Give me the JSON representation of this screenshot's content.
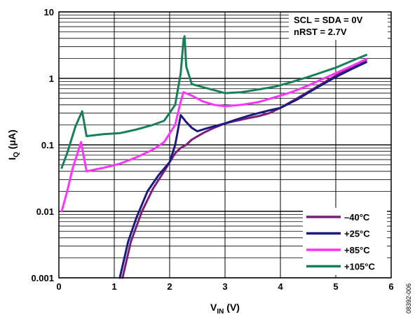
{
  "chart_data": {
    "type": "line",
    "xlabel_main": "V",
    "xlabel_sub": "IN",
    "xlabel_unit": " (V)",
    "ylabel_main": "I",
    "ylabel_sub": "Q",
    "ylabel_unit": " (μA)",
    "xlim": [
      0,
      6
    ],
    "ylim": [
      0.001,
      10
    ],
    "y_scale": "log",
    "x_ticks": [
      "0",
      "1",
      "2",
      "3",
      "4",
      "5",
      "6"
    ],
    "y_ticks": [
      "0.001",
      "0.01",
      "0.1",
      "1",
      "10"
    ],
    "grid": true,
    "legend_position": "bottom-right",
    "annotations": [
      "SCL = SDA = 0V",
      "nRST = 2.7V"
    ],
    "figure_id": "08392-006",
    "series": [
      {
        "name": "–40°C",
        "color": "#7b1e7a",
        "x": [
          1.15,
          1.3,
          1.5,
          1.7,
          1.9,
          2.0,
          2.1,
          2.2,
          2.3,
          2.4,
          2.6,
          2.8,
          3.0,
          3.2,
          3.4,
          3.6,
          3.8,
          4.0,
          4.3,
          4.6,
          5.0,
          5.3,
          5.55
        ],
        "y": [
          0.001,
          0.0035,
          0.01,
          0.022,
          0.04,
          0.055,
          0.075,
          0.09,
          0.1,
          0.12,
          0.15,
          0.18,
          0.21,
          0.23,
          0.25,
          0.27,
          0.3,
          0.36,
          0.5,
          0.7,
          1.1,
          1.5,
          1.9
        ]
      },
      {
        "name": "+25°C",
        "color": "#1a1a80",
        "x": [
          1.1,
          1.25,
          1.4,
          1.6,
          1.8,
          2.0,
          2.1,
          2.2,
          2.3,
          2.4,
          2.5,
          2.7,
          3.0,
          3.2,
          3.4,
          3.6,
          3.8,
          4.0,
          4.3,
          4.6,
          5.0,
          5.3,
          5.55
        ],
        "y": [
          0.001,
          0.0035,
          0.008,
          0.02,
          0.035,
          0.055,
          0.1,
          0.28,
          0.22,
          0.18,
          0.16,
          0.18,
          0.21,
          0.24,
          0.27,
          0.3,
          0.33,
          0.36,
          0.48,
          0.68,
          1.05,
          1.4,
          1.75
        ]
      },
      {
        "name": "+85°C",
        "color": "#ff33ff",
        "x": [
          0.05,
          0.15,
          0.25,
          0.4,
          0.5,
          0.8,
          1.1,
          1.4,
          1.7,
          1.9,
          2.1,
          2.2,
          2.25,
          2.4,
          2.6,
          2.8,
          3.0,
          3.3,
          3.6,
          3.9,
          4.2,
          4.5,
          5.0,
          5.3,
          5.55
        ],
        "y": [
          0.01,
          0.02,
          0.045,
          0.11,
          0.04,
          0.045,
          0.052,
          0.065,
          0.085,
          0.11,
          0.2,
          0.45,
          0.62,
          0.55,
          0.45,
          0.4,
          0.38,
          0.4,
          0.44,
          0.52,
          0.62,
          0.78,
          1.2,
          1.55,
          1.95
        ]
      },
      {
        "name": "+105°C",
        "color": "#16805a",
        "x": [
          0.05,
          0.15,
          0.3,
          0.42,
          0.5,
          0.8,
          1.1,
          1.4,
          1.7,
          1.9,
          2.1,
          2.2,
          2.25,
          2.27,
          2.3,
          2.4,
          2.7,
          3.0,
          3.3,
          3.6,
          3.9,
          4.2,
          4.5,
          5.0,
          5.3,
          5.55
        ],
        "y": [
          0.045,
          0.075,
          0.19,
          0.32,
          0.135,
          0.145,
          0.15,
          0.17,
          0.2,
          0.23,
          0.4,
          1.2,
          3.8,
          4.3,
          1.5,
          0.82,
          0.7,
          0.6,
          0.62,
          0.68,
          0.75,
          0.88,
          1.05,
          1.45,
          1.85,
          2.25
        ]
      }
    ]
  }
}
